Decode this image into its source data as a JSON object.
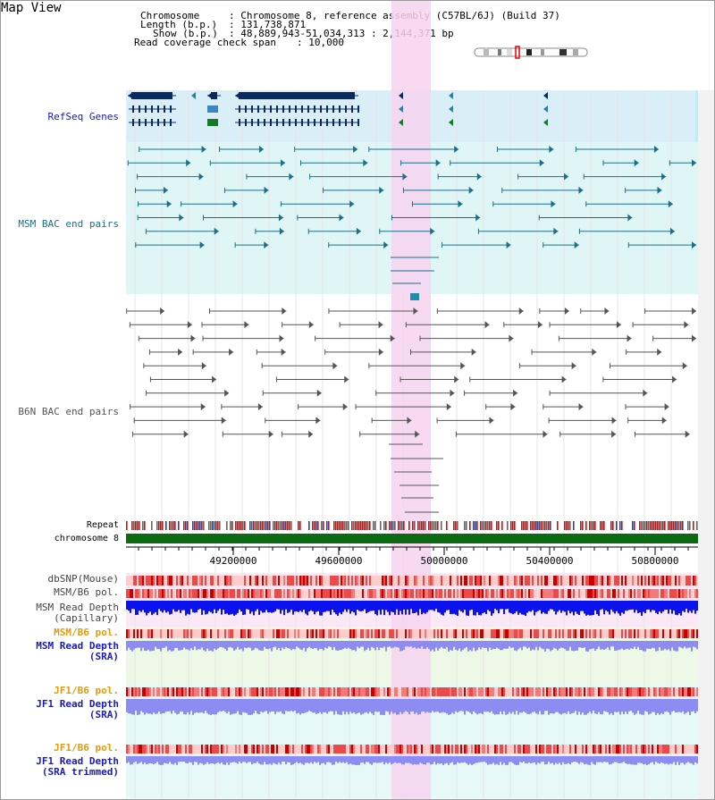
{
  "title": "Map View",
  "header": {
    "chromosome_key": "Chromosome    ",
    "chromosome_val": ": Chromosome 8, reference assembly (C57BL/6J) (Build 37)",
    "length_key": "Length (b.p.)",
    "length_val": ": 131,738,871",
    "show_key": "Show (b.p.)",
    "show_val": ": 48,889,943-51,034,313 : 2,144,371 bp",
    "span_key": "Read coverage check span",
    "span_val": ": 10,000"
  },
  "tracks": {
    "refseq": "RefSeq Genes",
    "msm_bac": "MSM BAC end pairs",
    "b6n_bac": "B6N BAC end pairs",
    "repeat": "Repeat",
    "chromosome": "chromosome 8",
    "dbsnp": "dbSNP(Mouse)",
    "msm_pol": "MSM/B6 pol.",
    "msm_depth_cap_1": "MSM Read Depth",
    "msm_depth_cap_2": "(Capillary)",
    "msm_pol_2": "MSM/B6 pol.",
    "msm_depth_sra_1": "MSM Read Depth",
    "msm_depth_sra_2": "(SRA)",
    "jf1_pol_1": "JF1/B6 pol.",
    "jf1_depth_sra_1": "JF1 Read Depth",
    "jf1_depth_sra_2": "(SRA)",
    "jf1_pol_2": "JF1/B6 pol.",
    "jf1_depth_trim_1": "JF1 Read Depth",
    "jf1_depth_trim_2": "(SRA trimmed)"
  },
  "ruler": {
    "ticks": [
      "49200000",
      "49600000",
      "50000000",
      "50400000",
      "50800000"
    ]
  },
  "colors": {
    "refseq_bg": "#daeef8",
    "msm_bg": "#e0f6f6",
    "highlight": "#f6d4f0",
    "gene": "#0a2a5e",
    "msm_feature": "#1c6f87",
    "b6n_feature": "#555555",
    "chromosome": "#0b6a12",
    "pol": "#e6333a",
    "depth_cap": "#0b12ee",
    "depth_sra": "#8c8cf2",
    "label_blue": "#1a1ab8",
    "label_teal": "#1c6f87",
    "label_orange": "#e39a10"
  }
}
